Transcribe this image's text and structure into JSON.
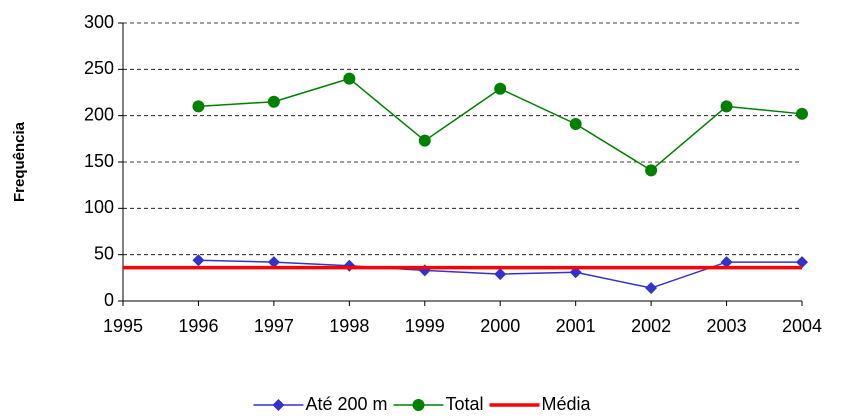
{
  "chart_data": {
    "type": "line",
    "y_label": "Frequência",
    "x": [
      1995,
      1996,
      1997,
      1998,
      1999,
      2000,
      2001,
      2002,
      2003,
      2004
    ],
    "series": [
      {
        "name": "Até 200 m",
        "color": "#3333cc",
        "marker": "diamond",
        "values": [
          null,
          44,
          42,
          38,
          33,
          29,
          31,
          14,
          42,
          42
        ]
      },
      {
        "name": "Total",
        "color": "#008000",
        "marker": "circle",
        "values": [
          null,
          210,
          215,
          240,
          173,
          229,
          191,
          141,
          210,
          202
        ]
      },
      {
        "name": "Média",
        "color": "#ff0000",
        "values": [
          36,
          36,
          36,
          36,
          36,
          36,
          36,
          36,
          36,
          36
        ]
      }
    ],
    "xlim": [
      1995,
      2004
    ],
    "xticks": [
      1995,
      1996,
      1997,
      1998,
      1999,
      2000,
      2001,
      2002,
      2003,
      2004
    ],
    "ylim": [
      0,
      300
    ],
    "yticks": [
      0,
      50,
      100,
      150,
      200,
      250,
      300
    ],
    "grid": true,
    "legend": "bottom"
  }
}
